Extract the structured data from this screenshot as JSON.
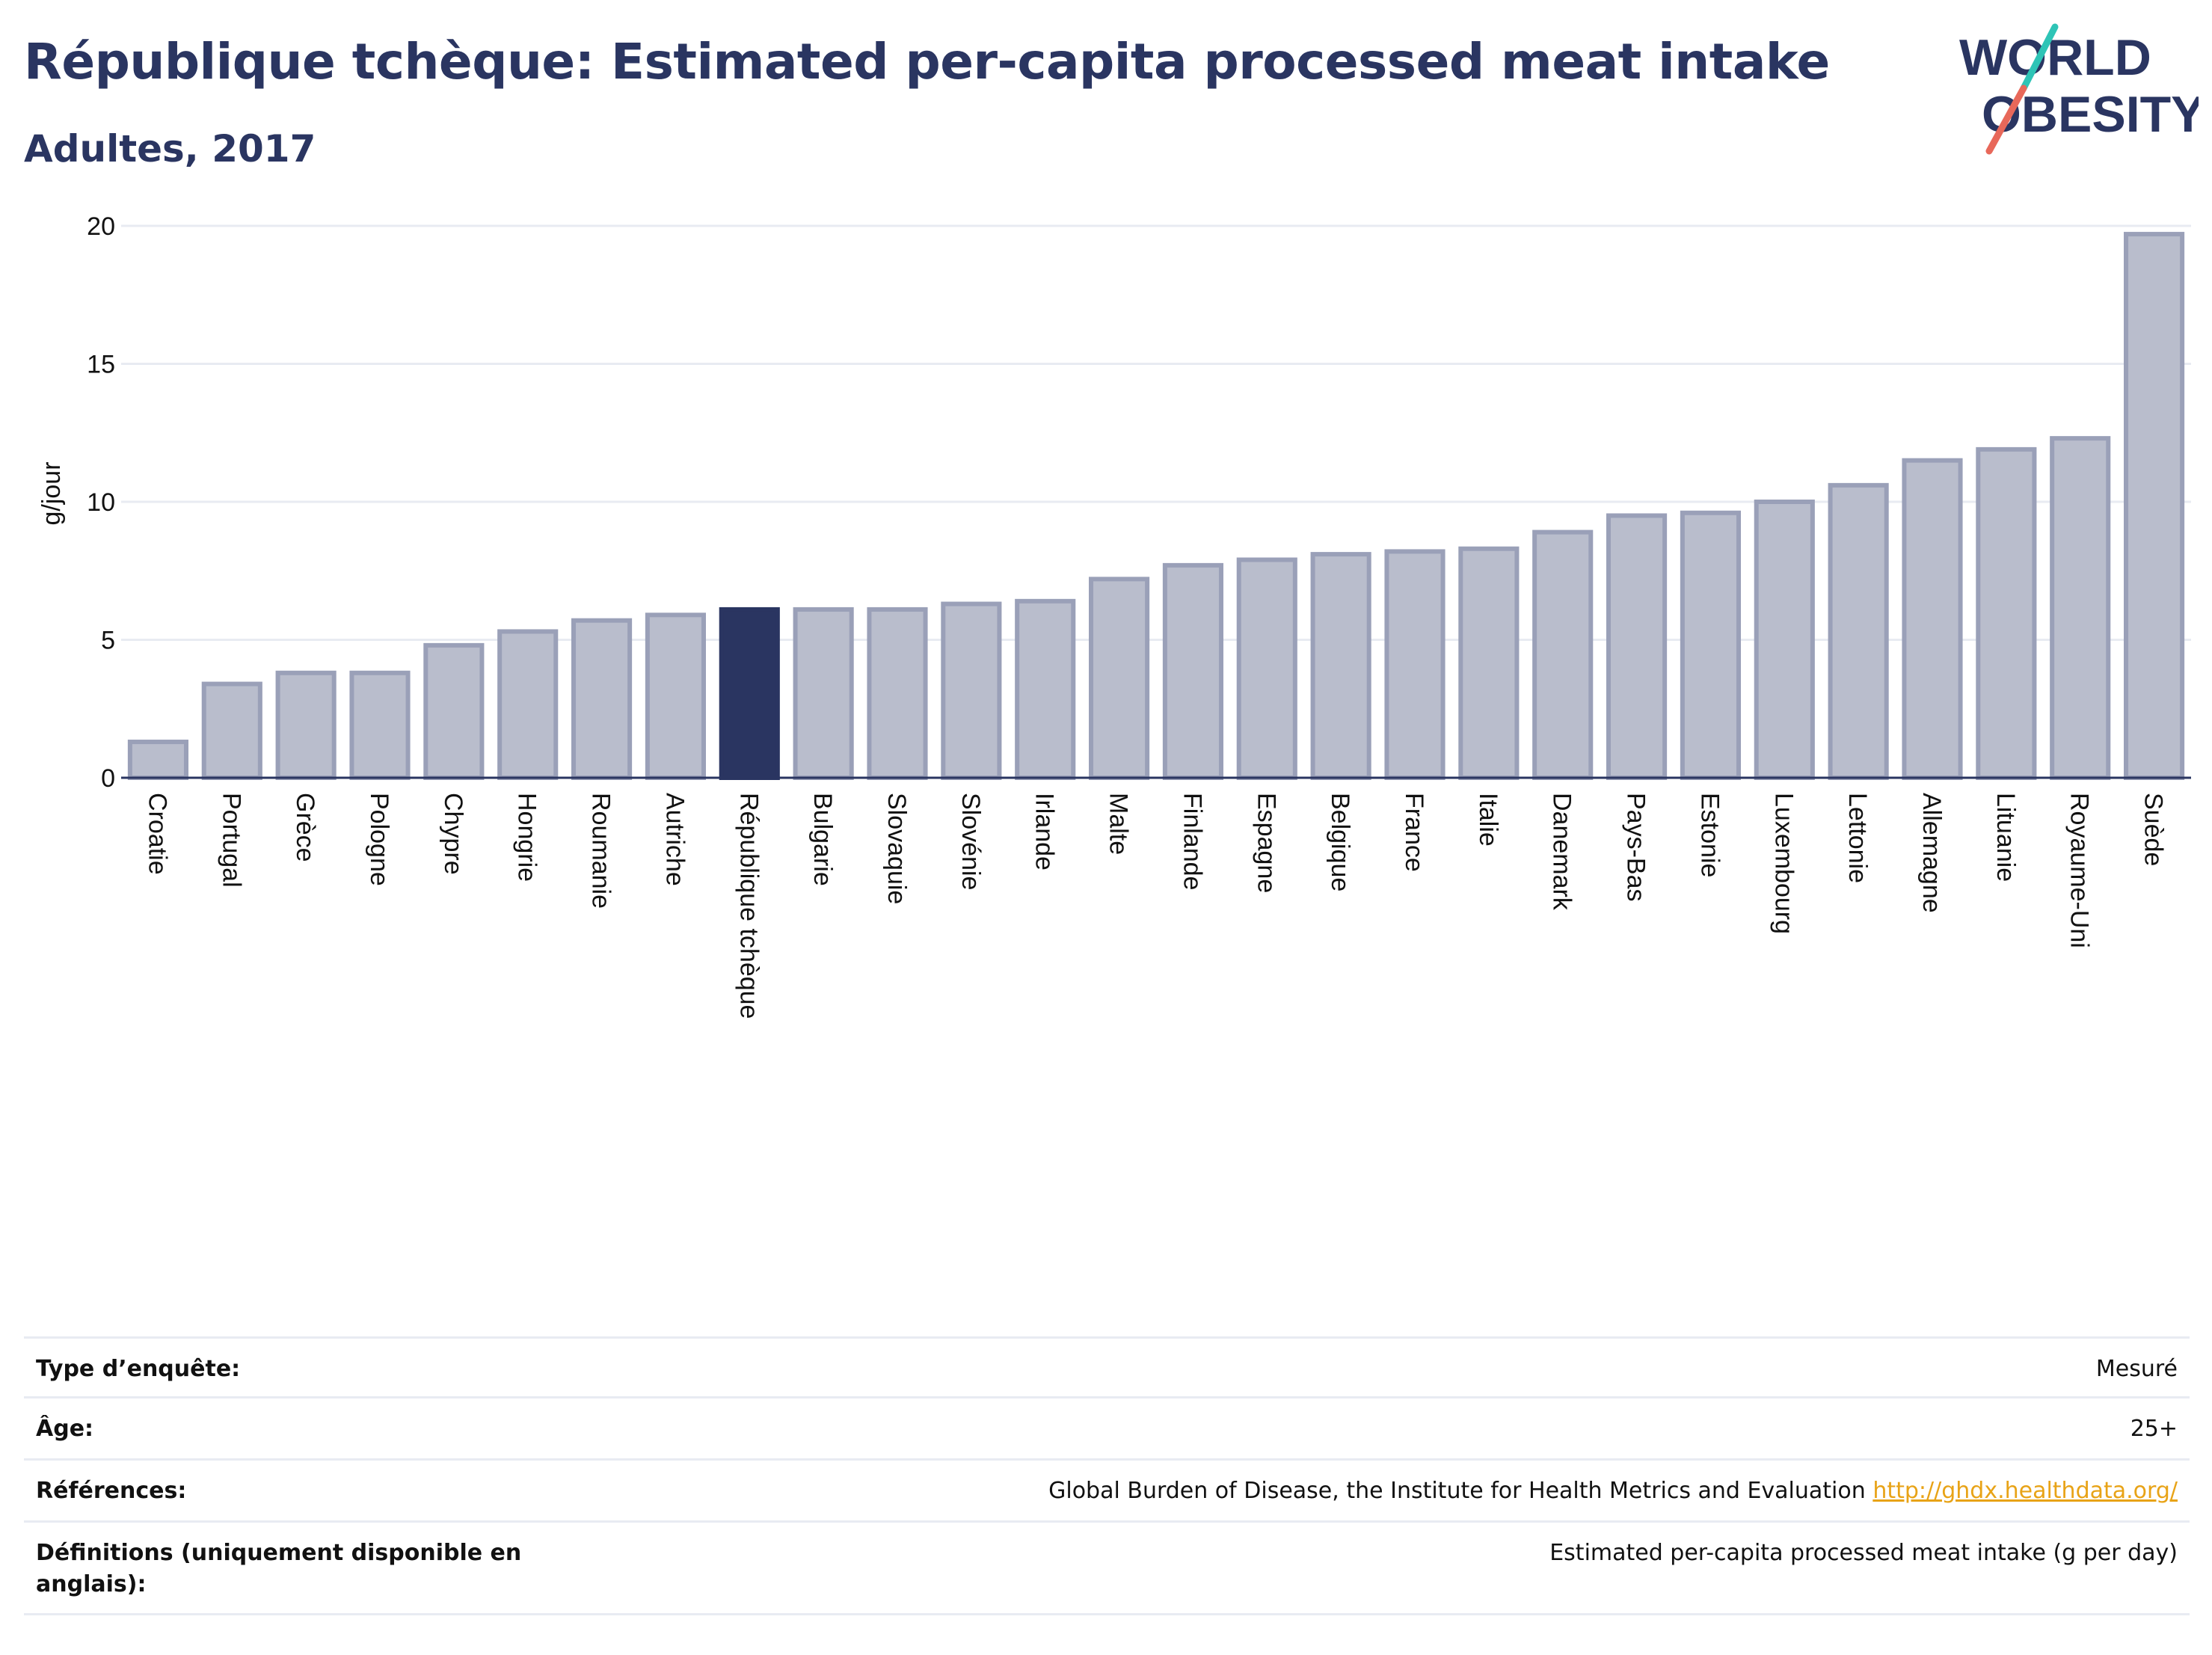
{
  "header": {
    "title": "République tchèque: Estimated per-capita processed meat intake",
    "subtitle": "Adultes, 2017"
  },
  "logo": {
    "line1": "WORLD",
    "line2": "OBESITY",
    "colors": {
      "text": "#2a3561",
      "slash_red": "#e8685a",
      "slash_teal": "#2ec4b6"
    }
  },
  "chart_data": {
    "type": "bar",
    "title": "République tchèque: Estimated per-capita processed meat intake",
    "subtitle": "Adultes, 2017",
    "xlabel": "",
    "ylabel": "g/jour",
    "ylim": [
      0,
      20
    ],
    "yticks": [
      0,
      5,
      10,
      15,
      20
    ],
    "grid": true,
    "highlight": "République tchèque",
    "colors": {
      "bar": "#b9bdcc",
      "bar_edge": "#9aa0b8",
      "highlight": "#2a3561",
      "grid": "#e8ebf2",
      "axis": "#2a3561"
    },
    "categories": [
      "Croatie",
      "Portugal",
      "Grèce",
      "Pologne",
      "Chypre",
      "Hongrie",
      "Roumanie",
      "Autriche",
      "République tchèque",
      "Bulgarie",
      "Slovaquie",
      "Slovénie",
      "Irlande",
      "Malte",
      "Finlande",
      "Espagne",
      "Belgique",
      "France",
      "Italie",
      "Danemark",
      "Pays-Bas",
      "Estonie",
      "Luxembourg",
      "Lettonie",
      "Allemagne",
      "Lituanie",
      "Royaume-Uni",
      "Suède"
    ],
    "values": [
      1.3,
      3.4,
      3.8,
      3.8,
      4.8,
      5.3,
      5.7,
      5.9,
      6.1,
      6.1,
      6.1,
      6.3,
      6.4,
      7.2,
      7.7,
      7.9,
      8.1,
      8.2,
      8.3,
      8.9,
      9.5,
      9.6,
      10.0,
      10.6,
      11.5,
      11.9,
      12.3,
      19.7
    ]
  },
  "info": {
    "survey_type_label": "Type d’enquête:",
    "survey_type_value": "Mesuré",
    "age_label": "Âge:",
    "age_value": "25+",
    "references_label": "Références:",
    "references_value": "Global Burden of Disease, the Institute for Health Metrics and Evaluation",
    "references_link": "http://ghdx.healthdata.org/",
    "definitions_label": "Définitions (uniquement disponible en anglais):",
    "definitions_value": "Estimated per-capita processed meat intake (g per day)"
  }
}
